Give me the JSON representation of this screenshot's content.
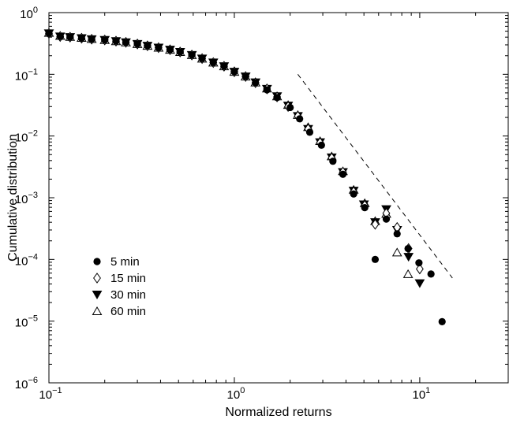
{
  "chart_data": {
    "type": "scatter",
    "xlabel": "Normalized returns",
    "ylabel": "Cumulative distribution",
    "x_scale": "log",
    "y_scale": "log",
    "xlim": [
      0.1,
      30
    ],
    "ylim": [
      1e-06,
      1
    ],
    "grid": false,
    "legend_position": "lower-left",
    "x_ticks": [
      {
        "value": 0.1,
        "base": "10",
        "exp": "−1"
      },
      {
        "value": 1,
        "base": "10",
        "exp": "0"
      },
      {
        "value": 10,
        "base": "10",
        "exp": "1"
      }
    ],
    "y_ticks": [
      {
        "value": 1,
        "base": "10",
        "exp": "0"
      },
      {
        "value": 0.1,
        "base": "10",
        "exp": "−1"
      },
      {
        "value": 0.01,
        "base": "10",
        "exp": "−2"
      },
      {
        "value": 0.001,
        "base": "10",
        "exp": "−3"
      },
      {
        "value": 0.0001,
        "base": "10",
        "exp": "−4"
      },
      {
        "value": 1e-05,
        "base": "10",
        "exp": "−5"
      },
      {
        "value": 1e-06,
        "base": "10",
        "exp": "−6"
      }
    ],
    "series": [
      {
        "name": "5 min",
        "marker": "circle-filled",
        "x": [
          0.1,
          0.115,
          0.13,
          0.15,
          0.17,
          0.2,
          0.23,
          0.26,
          0.3,
          0.34,
          0.39,
          0.45,
          0.51,
          0.59,
          0.67,
          0.77,
          0.88,
          1.0,
          1.15,
          1.3,
          1.5,
          1.7,
          2.0,
          2.25,
          2.55,
          2.95,
          3.4,
          3.85,
          4.4,
          5.05,
          5.75,
          6.6,
          7.55,
          8.65,
          9.9,
          11.5,
          13.2
        ],
        "y": [
          0.46,
          0.41,
          0.4,
          0.385,
          0.37,
          0.36,
          0.345,
          0.33,
          0.31,
          0.29,
          0.27,
          0.25,
          0.23,
          0.205,
          0.18,
          0.155,
          0.135,
          0.11,
          0.092,
          0.073,
          0.056,
          0.042,
          0.029,
          0.019,
          0.0115,
          0.0071,
          0.0039,
          0.0024,
          0.00115,
          0.00069,
          0.0001,
          0.00045,
          0.00026,
          0.00015,
          8.8e-05,
          5.8e-05,
          9.8e-06
        ]
      },
      {
        "name": "15 min",
        "marker": "diamond-open",
        "x": [
          0.1,
          0.115,
          0.13,
          0.15,
          0.17,
          0.2,
          0.23,
          0.26,
          0.3,
          0.34,
          0.39,
          0.45,
          0.51,
          0.59,
          0.67,
          0.77,
          0.88,
          1.0,
          1.15,
          1.3,
          1.5,
          1.7,
          1.95,
          2.2,
          2.5,
          2.9,
          3.35,
          3.85,
          4.4,
          5.05,
          5.75,
          6.6,
          7.55,
          8.7,
          10.0
        ],
        "y": [
          0.46,
          0.41,
          0.4,
          0.385,
          0.37,
          0.36,
          0.345,
          0.33,
          0.31,
          0.29,
          0.27,
          0.25,
          0.23,
          0.205,
          0.18,
          0.155,
          0.135,
          0.11,
          0.092,
          0.073,
          0.058,
          0.043,
          0.03,
          0.021,
          0.013,
          0.0078,
          0.0044,
          0.0026,
          0.00125,
          0.00075,
          0.00037,
          0.00056,
          0.00033,
          0.00015,
          7e-05
        ]
      },
      {
        "name": "30 min",
        "marker": "triangle-down-filled",
        "x": [
          0.1,
          0.115,
          0.13,
          0.15,
          0.17,
          0.2,
          0.23,
          0.26,
          0.3,
          0.34,
          0.39,
          0.45,
          0.51,
          0.59,
          0.67,
          0.77,
          0.88,
          1.0,
          1.15,
          1.3,
          1.5,
          1.7,
          1.95,
          2.2,
          2.5,
          2.9,
          3.35,
          3.85,
          4.4,
          5.0,
          5.75,
          6.6,
          7.55,
          8.7,
          10.0
        ],
        "y": [
          0.46,
          0.41,
          0.4,
          0.385,
          0.37,
          0.36,
          0.345,
          0.33,
          0.31,
          0.29,
          0.27,
          0.25,
          0.23,
          0.205,
          0.18,
          0.155,
          0.135,
          0.11,
          0.092,
          0.074,
          0.058,
          0.044,
          0.031,
          0.021,
          0.013,
          0.0079,
          0.0045,
          0.0026,
          0.0013,
          0.00078,
          0.0004,
          0.00065,
          0.0003,
          0.00011,
          4.1e-05
        ]
      },
      {
        "name": "60 min",
        "marker": "triangle-up-open",
        "x": [
          0.1,
          0.115,
          0.13,
          0.15,
          0.17,
          0.2,
          0.23,
          0.26,
          0.3,
          0.34,
          0.39,
          0.45,
          0.51,
          0.59,
          0.67,
          0.77,
          0.88,
          1.0,
          1.15,
          1.3,
          1.5,
          1.7,
          1.95,
          2.2,
          2.5,
          2.9,
          3.35,
          3.85,
          4.4,
          5.05,
          5.75,
          6.6,
          7.55,
          8.65
        ],
        "y": [
          0.47,
          0.42,
          0.405,
          0.39,
          0.375,
          0.36,
          0.345,
          0.33,
          0.31,
          0.29,
          0.27,
          0.25,
          0.23,
          0.205,
          0.18,
          0.155,
          0.135,
          0.11,
          0.092,
          0.074,
          0.059,
          0.044,
          0.032,
          0.022,
          0.014,
          0.0083,
          0.0047,
          0.0027,
          0.00135,
          0.00082,
          0.00042,
          0.00055,
          0.00013,
          5.8e-05
        ]
      }
    ],
    "reference_line": {
      "style": "dashed",
      "x": [
        2.2,
        15
      ],
      "y": [
        0.1,
        5e-05
      ]
    }
  }
}
